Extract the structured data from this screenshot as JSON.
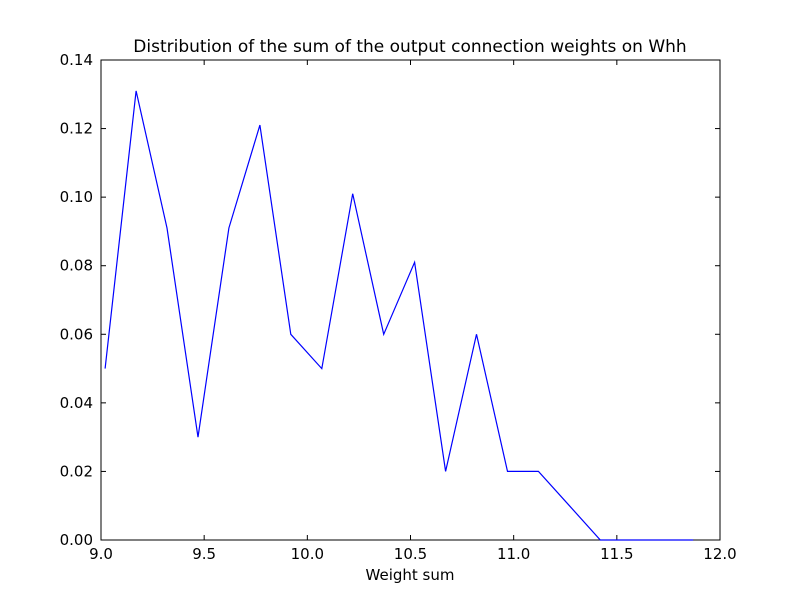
{
  "chart_data": {
    "type": "line",
    "title": "Distribution of the sum of the output connection weights on Whh",
    "xlabel": "Weight sum",
    "ylabel": "",
    "xlim": [
      9.0,
      12.0
    ],
    "ylim": [
      0.0,
      0.14
    ],
    "xticks": [
      "9.0",
      "9.5",
      "10.0",
      "10.5",
      "11.0",
      "11.5",
      "12.0"
    ],
    "yticks": [
      "0.00",
      "0.02",
      "0.04",
      "0.06",
      "0.08",
      "0.10",
      "0.12",
      "0.14"
    ],
    "grid": false,
    "series": [
      {
        "color": "#0000ff",
        "x": [
          9.02,
          9.17,
          9.32,
          9.47,
          9.62,
          9.77,
          9.92,
          10.07,
          10.22,
          10.37,
          10.52,
          10.67,
          10.82,
          10.97,
          11.12,
          11.27,
          11.42,
          11.57,
          11.72,
          11.87
        ],
        "y": [
          0.05,
          0.131,
          0.091,
          0.03,
          0.091,
          0.121,
          0.06,
          0.05,
          0.101,
          0.06,
          0.081,
          0.02,
          0.06,
          0.02,
          0.02,
          0.01,
          0.0,
          0.0,
          0.0,
          0.0
        ]
      }
    ]
  }
}
